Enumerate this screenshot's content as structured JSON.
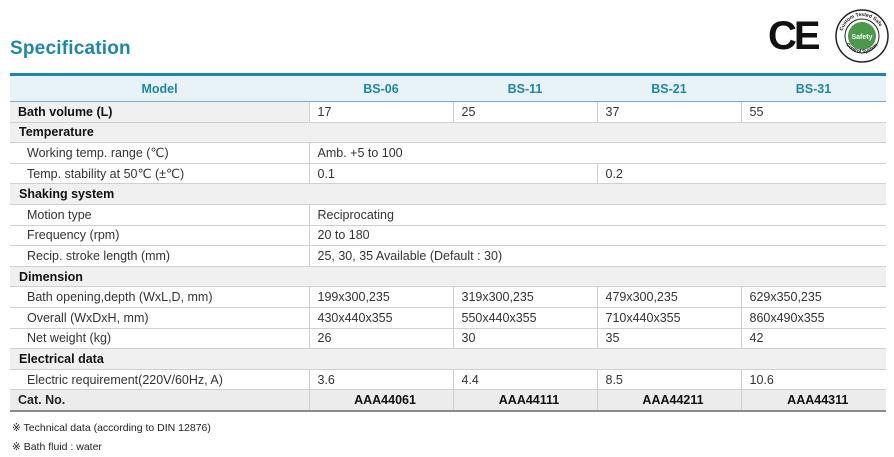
{
  "page": {
    "title": "Specification"
  },
  "certifications": {
    "ce_mark": "CE",
    "seal_text": "Custom Tested Safe Safety Control System",
    "seal_inner": "Safety"
  },
  "table": {
    "headers": [
      "Model",
      "BS-06",
      "BS-11",
      "BS-21",
      "BS-31"
    ],
    "bath_volume": {
      "label": "Bath volume (L)",
      "values": [
        "17",
        "25",
        "37",
        "55"
      ]
    },
    "temperature": {
      "section": "Temperature",
      "working_range": {
        "label": "Working temp. range (℃)",
        "value": "Amb. +5 to 100"
      },
      "stability": {
        "label": "Temp. stability at 50℃ (±℃)",
        "value_a": "0.1",
        "value_b": "0.2"
      }
    },
    "shaking": {
      "section": "Shaking system",
      "motion": {
        "label": "Motion type",
        "value": "Reciprocating"
      },
      "frequency": {
        "label": "Frequency (rpm)",
        "value": "20 to 180"
      },
      "stroke": {
        "label": "Recip. stroke length (mm)",
        "value": "25, 30, 35 Available (Default : 30)"
      }
    },
    "dimension": {
      "section": "Dimension",
      "bath_opening": {
        "label": "Bath opening,depth (WxL,D, mm)",
        "values": [
          "199x300,235",
          "319x300,235",
          "479x300,235",
          "629x350,235"
        ]
      },
      "overall": {
        "label": "Overall (WxDxH, mm)",
        "values": [
          "430x440x355",
          "550x440x355",
          "710x440x355",
          "860x490x355"
        ]
      },
      "net_weight": {
        "label": "Net weight (kg)",
        "values": [
          "26",
          "30",
          "35",
          "42"
        ]
      }
    },
    "electrical": {
      "section": "Electrical data",
      "requirement": {
        "label": "Electric requirement(220V/60Hz, A)",
        "values": [
          "3.6",
          "4.4",
          "8.5",
          "10.6"
        ]
      }
    },
    "cat_no": {
      "label": "Cat. No.",
      "values": [
        "AAA44061",
        "AAA44111",
        "AAA44211",
        "AAA44311"
      ]
    }
  },
  "notes": [
    "※ Technical data (according to DIN 12876)",
    "※ Bath fluid : water"
  ],
  "colors": {
    "accent": "#1d87a8",
    "header_bg": "#e8f3f7",
    "section_bg": "#f0f0f0"
  }
}
